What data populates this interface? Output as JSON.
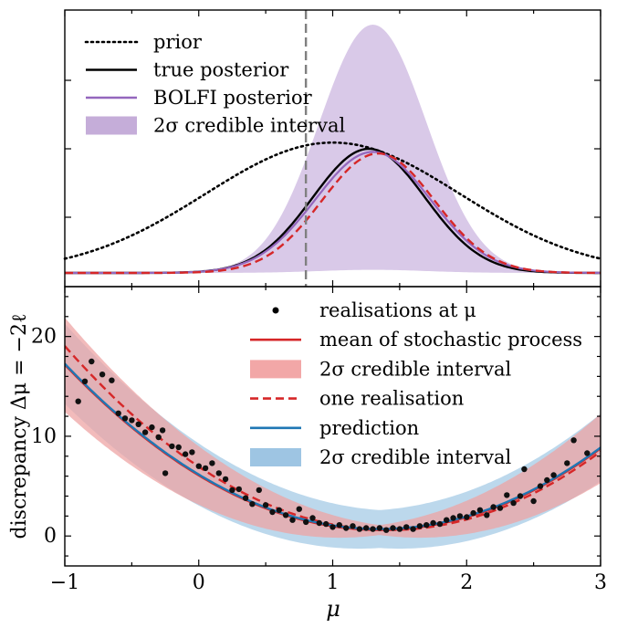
{
  "chart_data": [
    {
      "type": "line",
      "panel": "top",
      "xlim": [
        -1,
        3
      ],
      "y_tick_labels": "hidden",
      "legend_placement": "top-left",
      "legend": [
        {
          "label": "prior",
          "style": "dotted",
          "color": "#000000"
        },
        {
          "label": "true posterior",
          "style": "solid",
          "color": "#000000"
        },
        {
          "label": "BOLFI posterior",
          "style": "solid",
          "color": "#9467bd"
        },
        {
          "label": "2σ credible interval",
          "style": "band",
          "color": "#c5add9"
        }
      ],
      "vline_x": 0.8,
      "series": [
        {
          "name": "prior",
          "mean": 1.0,
          "sd": 0.95,
          "peak": 0.84
        },
        {
          "name": "true posterior",
          "mean": 1.27,
          "sd": 0.42,
          "peak": 0.8
        },
        {
          "name": "BOLFI posterior",
          "mean": 1.3,
          "sd": 0.43,
          "peak": 0.78
        },
        {
          "name": "one realisation",
          "mean": 1.34,
          "sd": 0.42,
          "peak": 0.77
        }
      ],
      "band": {
        "upper_peak": 1.6,
        "upper_mean": 1.3,
        "upper_sd": 0.4,
        "lower_peak": 0.02,
        "lower_mean": 1.3,
        "lower_sd": 0.4
      }
    },
    {
      "type": "scatter",
      "panel": "bottom",
      "xlim": [
        -1,
        3
      ],
      "ylim": [
        -3,
        25
      ],
      "xticks": [
        -1,
        0,
        1,
        2,
        3
      ],
      "yticks": [
        0,
        10,
        20
      ],
      "xlabel": "μ",
      "ylabel": "discrepancy Δμ = −2ℓ",
      "legend_placement": "top-right",
      "legend": [
        {
          "label": "realisations at μ",
          "style": "marker",
          "color": "#000000"
        },
        {
          "label": "mean of stochastic process",
          "style": "solid",
          "color": "#d62728"
        },
        {
          "label": "2σ credible interval",
          "style": "band",
          "color": "#f2a7a7"
        },
        {
          "label": "one realisation",
          "style": "dashed",
          "color": "#d62728"
        },
        {
          "label": "prediction",
          "style": "solid",
          "color": "#1f77b4"
        },
        {
          "label": "2σ credible interval",
          "style": "band",
          "color": "#9ec5e3"
        }
      ],
      "curves": {
        "mean": {
          "vertex_x": 1.35,
          "vertex_y": 0.6,
          "a": 3.0
        },
        "prediction": {
          "vertex_x": 1.35,
          "vertex_y": 0.7,
          "a": 3.0
        },
        "one_realisation": {
          "vertex_x": 1.42,
          "vertex_y": 0.6,
          "a": 3.15
        },
        "red_band_half_width": {
          "base": 0.5,
          "slope": 1.8
        },
        "blue_band_half_width": {
          "base": 1.9,
          "slope": 0.9
        }
      },
      "points": [
        [
          -0.9,
          13.5
        ],
        [
          -0.85,
          15.5
        ],
        [
          -0.8,
          17.5
        ],
        [
          -0.72,
          16.2
        ],
        [
          -0.65,
          15.6
        ],
        [
          -0.6,
          12.3
        ],
        [
          -0.55,
          11.8
        ],
        [
          -0.5,
          11.6
        ],
        [
          -0.45,
          11.2
        ],
        [
          -0.4,
          10.4
        ],
        [
          -0.35,
          10.9
        ],
        [
          -0.3,
          9.9
        ],
        [
          -0.27,
          10.6
        ],
        [
          -0.25,
          6.3
        ],
        [
          -0.2,
          9.0
        ],
        [
          -0.15,
          8.9
        ],
        [
          -0.1,
          8.2
        ],
        [
          -0.05,
          8.4
        ],
        [
          0.0,
          7.0
        ],
        [
          0.05,
          6.8
        ],
        [
          0.1,
          7.3
        ],
        [
          0.15,
          6.3
        ],
        [
          0.2,
          5.7
        ],
        [
          0.25,
          4.6
        ],
        [
          0.3,
          4.7
        ],
        [
          0.35,
          3.8
        ],
        [
          0.4,
          3.2
        ],
        [
          0.45,
          4.6
        ],
        [
          0.5,
          3.1
        ],
        [
          0.55,
          2.4
        ],
        [
          0.6,
          2.6
        ],
        [
          0.65,
          2.1
        ],
        [
          0.7,
          1.6
        ],
        [
          0.75,
          2.7
        ],
        [
          0.8,
          1.4
        ],
        [
          0.85,
          1.8
        ],
        [
          0.9,
          1.3
        ],
        [
          0.95,
          1.2
        ],
        [
          1.0,
          0.9
        ],
        [
          1.05,
          1.1
        ],
        [
          1.1,
          0.8
        ],
        [
          1.15,
          1.0
        ],
        [
          1.2,
          0.7
        ],
        [
          1.25,
          0.8
        ],
        [
          1.3,
          0.7
        ],
        [
          1.35,
          0.8
        ],
        [
          1.4,
          0.6
        ],
        [
          1.45,
          0.8
        ],
        [
          1.5,
          0.7
        ],
        [
          1.55,
          0.9
        ],
        [
          1.6,
          0.7
        ],
        [
          1.65,
          1.0
        ],
        [
          1.7,
          1.1
        ],
        [
          1.75,
          1.3
        ],
        [
          1.8,
          1.2
        ],
        [
          1.85,
          1.6
        ],
        [
          1.9,
          1.8
        ],
        [
          1.95,
          2.0
        ],
        [
          2.0,
          1.9
        ],
        [
          2.05,
          2.3
        ],
        [
          2.1,
          2.6
        ],
        [
          2.15,
          2.1
        ],
        [
          2.2,
          2.9
        ],
        [
          2.25,
          2.8
        ],
        [
          2.3,
          4.1
        ],
        [
          2.35,
          3.3
        ],
        [
          2.4,
          4.0
        ],
        [
          2.43,
          6.7
        ],
        [
          2.5,
          3.5
        ],
        [
          2.55,
          5.0
        ],
        [
          2.6,
          5.6
        ],
        [
          2.65,
          6.1
        ],
        [
          2.75,
          7.3
        ],
        [
          2.8,
          9.6
        ],
        [
          2.9,
          8.3
        ]
      ]
    }
  ]
}
